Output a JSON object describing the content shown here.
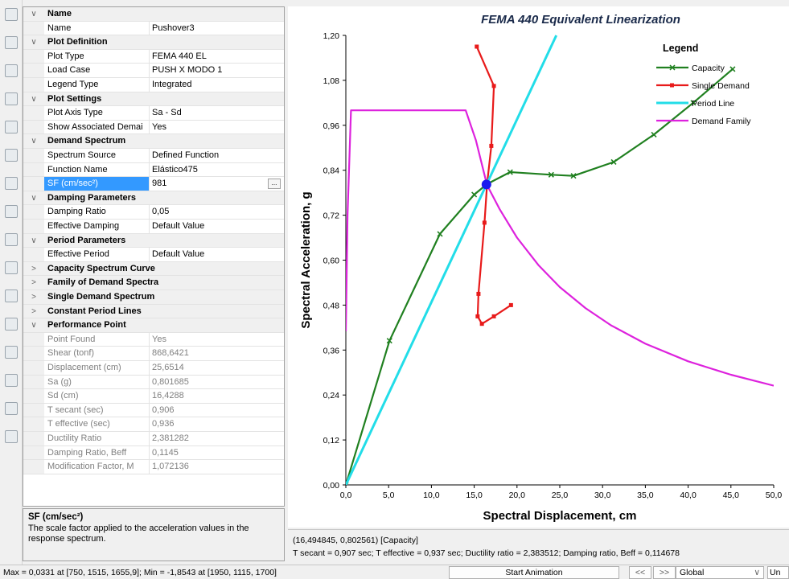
{
  "property_grid": {
    "rows": [
      {
        "kind": "cat",
        "label": "Name",
        "expanded": true
      },
      {
        "kind": "prop",
        "label": "Name",
        "value": "Pushover3"
      },
      {
        "kind": "cat",
        "label": "Plot Definition",
        "expanded": true
      },
      {
        "kind": "prop",
        "label": "Plot Type",
        "value": "FEMA 440 EL"
      },
      {
        "kind": "prop",
        "label": "Load Case",
        "value": "PUSH X MODO 1"
      },
      {
        "kind": "prop",
        "label": "Legend Type",
        "value": "Integrated"
      },
      {
        "kind": "cat",
        "label": "Plot Settings",
        "expanded": true
      },
      {
        "kind": "prop",
        "label": "Plot Axis Type",
        "value": "Sa - Sd"
      },
      {
        "kind": "prop",
        "label": "Show Associated Demai",
        "value": "Yes"
      },
      {
        "kind": "cat",
        "label": "Demand Spectrum",
        "expanded": true
      },
      {
        "kind": "prop",
        "label": "Spectrum Source",
        "value": "Defined Function"
      },
      {
        "kind": "prop",
        "label": "Function Name",
        "value": "Elástico475"
      },
      {
        "kind": "prop",
        "label": "SF (cm/sec²)",
        "value": "981",
        "selected": true
      },
      {
        "kind": "cat",
        "label": "Damping Parameters",
        "expanded": true
      },
      {
        "kind": "prop",
        "label": "Damping Ratio",
        "value": "0,05"
      },
      {
        "kind": "prop",
        "label": "Effective Damping",
        "value": "Default Value"
      },
      {
        "kind": "cat",
        "label": "Period Parameters",
        "expanded": true
      },
      {
        "kind": "prop",
        "label": "Effective Period",
        "value": "Default Value"
      },
      {
        "kind": "cat",
        "label": "Capacity Spectrum Curve",
        "expanded": false
      },
      {
        "kind": "cat",
        "label": "Family of Demand Spectra",
        "expanded": false
      },
      {
        "kind": "cat",
        "label": "Single Demand Spectrum",
        "expanded": false
      },
      {
        "kind": "cat",
        "label": "Constant Period Lines",
        "expanded": false
      },
      {
        "kind": "cat",
        "label": "Performance Point",
        "expanded": true
      },
      {
        "kind": "ro",
        "label": "Point Found",
        "value": "Yes"
      },
      {
        "kind": "ro",
        "label": "Shear (tonf)",
        "value": "868,6421"
      },
      {
        "kind": "ro",
        "label": "Displacement (cm)",
        "value": "25,6514"
      },
      {
        "kind": "ro",
        "label": "Sa (g)",
        "value": "0,801685"
      },
      {
        "kind": "ro",
        "label": "Sd (cm)",
        "value": "16,4288"
      },
      {
        "kind": "ro",
        "label": "T secant (sec)",
        "value": "0,906"
      },
      {
        "kind": "ro",
        "label": "T effective (sec)",
        "value": "0,936"
      },
      {
        "kind": "ro",
        "label": "Ductility Ratio",
        "value": "2,381282"
      },
      {
        "kind": "ro",
        "label": "Damping Ratio, Beff",
        "value": "0,1145"
      },
      {
        "kind": "ro",
        "label": "Modification Factor, M",
        "value": "1,072136"
      }
    ],
    "expand_glyph": "∨",
    "collapse_glyph": ">",
    "ellipsis_label": "..."
  },
  "description": {
    "title": "SF (cm/sec²)",
    "text": "The scale factor applied to the acceleration values in the response spectrum."
  },
  "status_lines": {
    "line1": "(16,494845, 0,802561)  [Capacity]",
    "line2": "T secant = 0,907 sec;  T effective = 0,937 sec;  Ductility ratio = 2,383512;  Damping ratio, Beff = 0,114678"
  },
  "status_bar": {
    "text": "Max = 0,0331 at [750, 1515, 1655,9];  Min = -1,8543 at [1950, 1115, 1700]",
    "animation_button": "Start Animation",
    "prev_button": "<<",
    "next_button": ">>",
    "coord_system": "Global",
    "units_partial": "Un"
  },
  "toolbar_icons": [
    "draw-line-icon",
    "select-icon",
    "rubber-band-icon",
    "table-icon",
    "frame-icon",
    "shell-icon",
    "solid-icon",
    "link-icon",
    "spring-icon",
    "restraint-icon",
    "section-icon",
    "assign-icon",
    "grid-icon",
    "display-icon",
    "deformed-icon",
    "edit-icon"
  ],
  "chart_data": {
    "type": "line",
    "title": "FEMA 440 Equivalent Linearization",
    "xlabel": "Spectral Displacement, cm",
    "ylabel": "Spectral Acceleration, g",
    "xlim": [
      0,
      50
    ],
    "ylim": [
      0,
      1.2
    ],
    "xticks": [
      "0,0",
      "5,0",
      "10,0",
      "15,0",
      "20,0",
      "25,0",
      "30,0",
      "35,0",
      "40,0",
      "45,0",
      "50,0"
    ],
    "yticks": [
      "0,00",
      "0,12",
      "0,24",
      "0,36",
      "0,48",
      "0,60",
      "0,72",
      "0,84",
      "0,96",
      "1,08",
      "1,20"
    ],
    "legend_title": "Legend",
    "legend_position": "top-right",
    "series": [
      {
        "name": "Capacity",
        "color": "#208020",
        "marker": "x",
        "points": [
          [
            0,
            0
          ],
          [
            5.1,
            0.385
          ],
          [
            11,
            0.67
          ],
          [
            15,
            0.775
          ],
          [
            16.5,
            0.803
          ],
          [
            19.2,
            0.835
          ],
          [
            24,
            0.828
          ],
          [
            26.6,
            0.825
          ],
          [
            31.3,
            0.862
          ],
          [
            36,
            0.935
          ],
          [
            40.6,
            1.02
          ],
          [
            45.2,
            1.11
          ]
        ]
      },
      {
        "name": "Single Demand",
        "color": "#e81a1a",
        "marker": "square",
        "points": [
          [
            15.3,
            1.17
          ],
          [
            17.3,
            1.065
          ],
          [
            17.0,
            0.905
          ],
          [
            16.5,
            0.803
          ],
          [
            16.2,
            0.7
          ],
          [
            15.5,
            0.51
          ],
          [
            15.4,
            0.45
          ],
          [
            15.9,
            0.43
          ],
          [
            17.3,
            0.45
          ],
          [
            19.3,
            0.48
          ]
        ]
      },
      {
        "name": "Period Line",
        "color": "#22dde8",
        "marker": "none",
        "points": [
          [
            0,
            0
          ],
          [
            24.6,
            1.2
          ]
        ]
      },
      {
        "name": "Demand Family",
        "color": "#dd22dd",
        "marker": "none",
        "points": [
          [
            0,
            0.41
          ],
          [
            0.2,
            0.72
          ],
          [
            0.6,
            1.0
          ],
          [
            14,
            1.0
          ],
          [
            15.2,
            0.92
          ],
          [
            16.5,
            0.8
          ],
          [
            18,
            0.735
          ],
          [
            20,
            0.66
          ],
          [
            22.5,
            0.587
          ],
          [
            25,
            0.528
          ],
          [
            28,
            0.472
          ],
          [
            31,
            0.426
          ],
          [
            35,
            0.377
          ],
          [
            40,
            0.33
          ],
          [
            45,
            0.294
          ],
          [
            50,
            0.265
          ]
        ]
      }
    ],
    "performance_point": {
      "x": 16.43,
      "y": 0.802,
      "color": "#1a1aee"
    }
  }
}
